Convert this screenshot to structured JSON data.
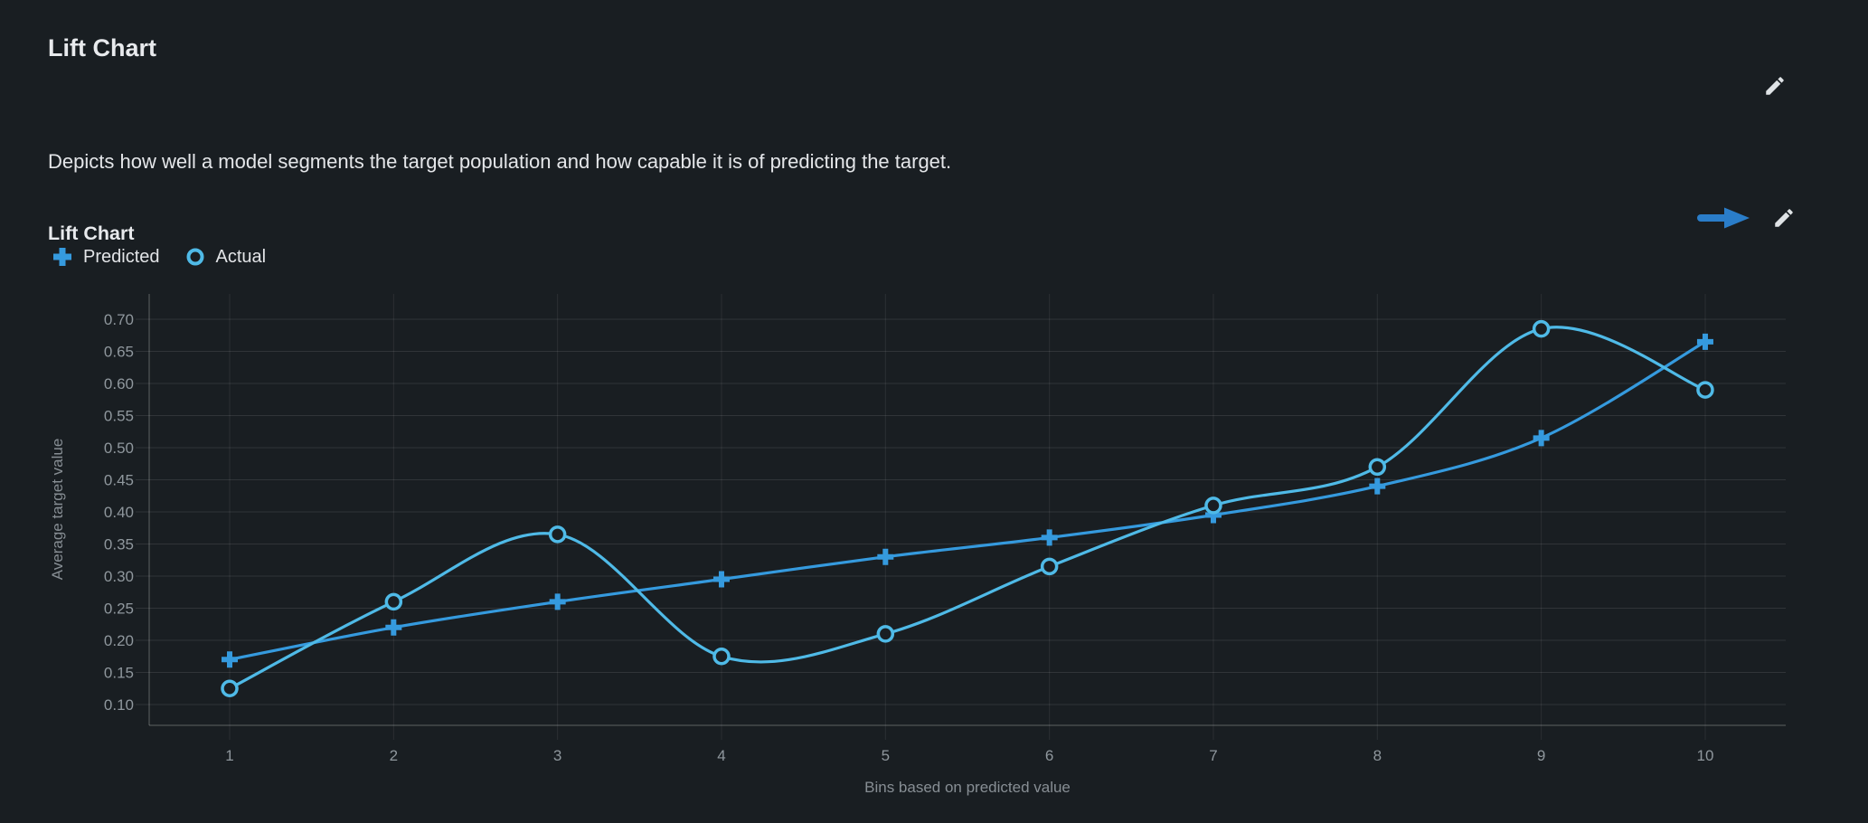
{
  "page": {
    "title": "Lift Chart",
    "description": "Depicts how well a model segments the target population and how capable it is of predicting the target."
  },
  "chart_header": {
    "title": "Lift Chart"
  },
  "icons": {
    "edit_insight": "pencil-icon",
    "open_chart": "arrow-right-icon",
    "edit_chart": "pencil-icon"
  },
  "chart_data": {
    "type": "line",
    "title": "Lift Chart",
    "xlabel": "Bins based on predicted value",
    "ylabel": "Average target value",
    "categories": [
      "1",
      "2",
      "3",
      "4",
      "5",
      "6",
      "7",
      "8",
      "9",
      "10"
    ],
    "series": [
      {
        "name": "Predicted",
        "marker": "plus",
        "color": "#359ade",
        "values": [
          0.17,
          0.22,
          0.26,
          0.295,
          0.33,
          0.36,
          0.395,
          0.44,
          0.515,
          0.665
        ]
      },
      {
        "name": "Actual",
        "marker": "circle",
        "color": "#4fbae7",
        "values": [
          0.125,
          0.26,
          0.365,
          0.175,
          0.21,
          0.315,
          0.41,
          0.47,
          0.685,
          0.59
        ]
      }
    ],
    "ylim": [
      0.1,
      0.7
    ],
    "y_tick_step": 0.05,
    "y_tick_labels": [
      "0.10",
      "0.15",
      "0.20",
      "0.25",
      "0.30",
      "0.35",
      "0.40",
      "0.45",
      "0.50",
      "0.55",
      "0.60",
      "0.65",
      "0.70"
    ],
    "grid": true,
    "smooth": true,
    "legend_position": "top-left"
  },
  "colors": {
    "background": "#191e22",
    "title_text": "#e8eaed",
    "body_text": "#e4e6e9",
    "tick_text": "#8f979d",
    "axis_title_text": "#878e94",
    "grid_horizontal": "rgba(255,255,255,0.10)",
    "grid_vertical": "rgba(255,255,255,0.08)",
    "axis_line": "rgba(255,255,255,0.20)",
    "predicted": "#359ade",
    "actual": "#4fbae7",
    "arrow_icon": "#2a7dc9",
    "pencil_icon": "#dfe3e6"
  }
}
